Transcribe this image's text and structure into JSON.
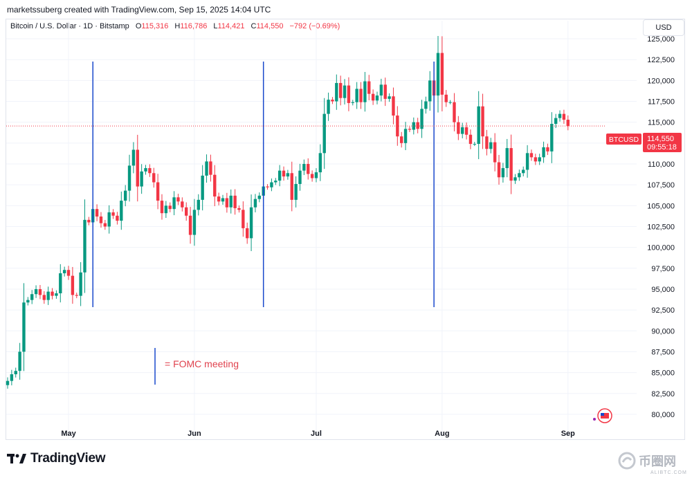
{
  "header": {
    "created_by": "marketssuberg created with TradingView.com, Sep 15, 2025 14:04 UTC",
    "symbol": "Bitcoin / U.S. Dollar · 1D · Bitstamp",
    "open_label": "O",
    "open": "115,316",
    "high_label": "H",
    "high": "116,786",
    "low_label": "L",
    "low": "114,421",
    "close_label": "C",
    "close": "114,550",
    "change": "−792 (−0.69%)",
    "currency": "USD"
  },
  "price_tag": {
    "symbol": "BTCUSD",
    "price": "114,550",
    "countdown": "09:55:18"
  },
  "annotation": {
    "text": "= FOMC meeting"
  },
  "branding": {
    "logo": "TradingView",
    "watermark": "币圈网",
    "watermark_sub": "ALIBTC.COM"
  },
  "colors": {
    "up": "#089981",
    "down": "#f23645",
    "fomc_line": "#1848cc",
    "grid": "#f0f3fa"
  },
  "chart_data": {
    "type": "candlestick",
    "symbol": "BTCUSD",
    "ylim": [
      79000,
      125500
    ],
    "y_ticks": [
      80000,
      82500,
      85000,
      87500,
      90000,
      92500,
      95000,
      97500,
      100000,
      102500,
      105000,
      107500,
      110000,
      112500,
      115000,
      117500,
      120000,
      122500,
      125000
    ],
    "y_tick_labels": [
      "80,000",
      "82,500",
      "85,000",
      "87,500",
      "90,000",
      "92,500",
      "95,000",
      "97,500",
      "100,000",
      "102,500",
      "105,000",
      "107,500",
      "110,000",
      "112,500",
      "115,000",
      "117,500",
      "120,000",
      "122,500",
      "125,000"
    ],
    "x_ticks": [
      {
        "label": "May",
        "date": "2025-05-01"
      },
      {
        "label": "Jun",
        "date": "2025-06-01"
      },
      {
        "label": "Jul",
        "date": "2025-07-01"
      },
      {
        "label": "Aug",
        "date": "2025-08-01"
      },
      {
        "label": "Sep",
        "date": "2025-09-01"
      }
    ],
    "start_date": "2025-04-16",
    "end_date": "2025-09-15",
    "fomc_meetings": [
      "2025-05-07",
      "2025-06-18",
      "2025-07-30"
    ],
    "last_price": 114550,
    "closes": [
      84000,
      84800,
      85200,
      87500,
      93400,
      93700,
      94400,
      95000,
      94300,
      93700,
      94700,
      94200,
      94500,
      96900,
      97300,
      96600,
      94300,
      94200,
      97000,
      103300,
      103000,
      104600,
      103700,
      102900,
      102500,
      104200,
      103800,
      103200,
      105600,
      106800,
      109800,
      111700,
      107300,
      109100,
      109500,
      108900,
      107800,
      105600,
      104100,
      105000,
      104600,
      106000,
      105500,
      104800,
      103800,
      101500,
      104500,
      105700,
      108600,
      110300,
      108700,
      106100,
      105500,
      105900,
      104800,
      106200,
      104700,
      104500,
      102300,
      101100,
      104800,
      105800,
      106200,
      107300,
      107200,
      107800,
      108000,
      109200,
      108500,
      108900,
      105700,
      107600,
      109200,
      110000,
      108800,
      108300,
      109000,
      111300,
      116000,
      117700,
      117500,
      119700,
      117900,
      119400,
      117300,
      117400,
      119000,
      117400,
      119900,
      118400,
      117600,
      118200,
      119500,
      117800,
      118100,
      115800,
      113300,
      112500,
      114200,
      114100,
      115000,
      114200,
      116600,
      117500,
      120000,
      118200,
      123300,
      118300,
      117400,
      117400,
      115000,
      113600,
      114400,
      113500,
      112400,
      112400,
      116900,
      113300,
      111800,
      112600,
      110200,
      108400,
      109500,
      111900,
      108000,
      108400,
      108900,
      109300,
      111300,
      110800,
      110300,
      110800,
      112000,
      111500,
      114800,
      115500,
      116000,
      115300,
      114550
    ]
  }
}
